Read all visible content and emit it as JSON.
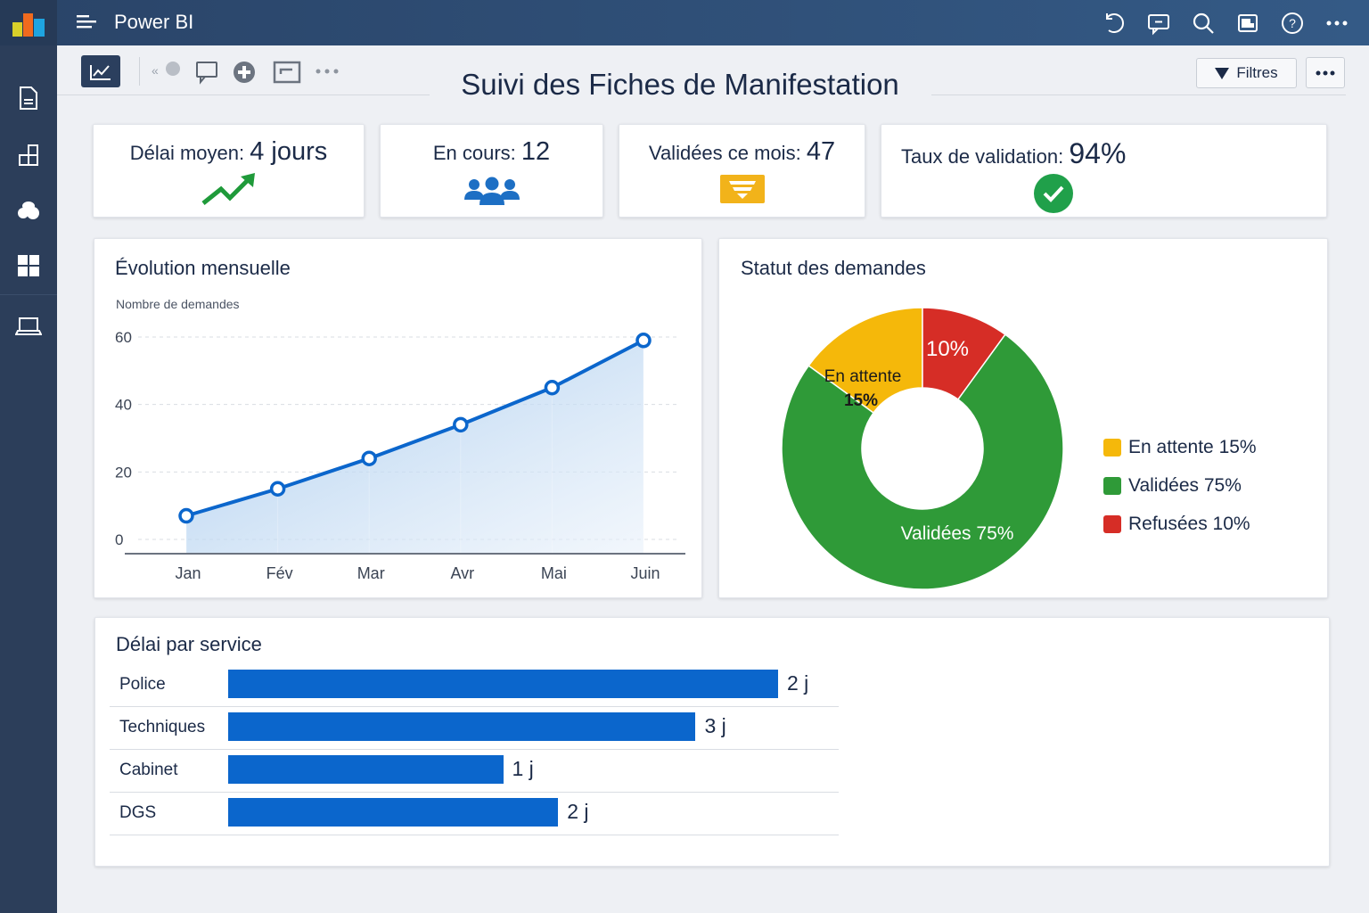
{
  "app": {
    "title": "Power BI"
  },
  "topbar": {
    "icons": [
      "undo-icon",
      "comment-icon",
      "search-icon",
      "view-icon",
      "help-icon",
      "more-icon"
    ]
  },
  "sidebar": {
    "items": [
      "report-icon",
      "pages-icon",
      "data-icon",
      "dashboard-icon",
      "laptop-icon"
    ]
  },
  "toolbar": {
    "icons": [
      "visual-icon",
      "collapse-icon",
      "comment-icon",
      "add-icon",
      "frame-icon",
      "more-icon"
    ],
    "filter_label": "Filtres"
  },
  "page": {
    "title": "Suivi des Fiches de Manifestation"
  },
  "kpis": [
    {
      "label": "Délai moyen: ",
      "value": "4 jours",
      "icon": "trend-up-icon"
    },
    {
      "label": "En cours: ",
      "value": "12",
      "icon": "people-icon"
    },
    {
      "label": "Validées ce mois: ",
      "value": "47",
      "icon": "funnel-icon"
    },
    {
      "label": "Taux de validation: ",
      "value": "94%",
      "icon": "check-circle-icon"
    }
  ],
  "colors": {
    "primary": "#0b66cc",
    "pending": "#f5b80a",
    "validated": "#2f9a38",
    "refused": "#d62d26",
    "dark": "#1b2a47"
  },
  "chart_data": [
    {
      "type": "line",
      "title": "Évolution mensuelle",
      "ylabel": "Nombre de demandes",
      "xlabel": "",
      "categories": [
        "Jan",
        "Fév",
        "Mar",
        "Avr",
        "Mai",
        "Juin"
      ],
      "values": [
        7,
        15,
        24,
        34,
        45,
        59
      ],
      "yticks": [
        0,
        20,
        40,
        60
      ],
      "ylim": [
        0,
        60
      ],
      "grid": true,
      "area_fill": true
    },
    {
      "type": "pie",
      "title": "Statut des demandes",
      "donut": true,
      "slices": [
        {
          "name": "En attente",
          "value": 15,
          "label": "En attente",
          "pct": "15%",
          "color": "#f5b80a"
        },
        {
          "name": "Refusées",
          "value": 10,
          "label": "",
          "pct": "10%",
          "color": "#d62d26"
        },
        {
          "name": "Validées",
          "value": 75,
          "label": "Validées",
          "pct": "75%",
          "color": "#2f9a38"
        }
      ],
      "legend": [
        {
          "text": "En attente 15%",
          "color": "#f5b80a"
        },
        {
          "text": "Validées 75%",
          "color": "#2f9a38"
        },
        {
          "text": "Refusées 10%",
          "color": "#d62d26"
        }
      ],
      "legend_position": "right"
    },
    {
      "type": "bar",
      "orientation": "horizontal",
      "title": "Délai par service",
      "categories": [
        "Police",
        "Techniques",
        "Cabinet",
        "DGS"
      ],
      "value_labels": [
        "2 j",
        "3 j",
        "1 j",
        "2 j"
      ],
      "values": [
        2,
        3,
        1,
        2
      ],
      "bar_fill_fraction": [
        1.0,
        0.85,
        0.5,
        0.6
      ]
    }
  ]
}
